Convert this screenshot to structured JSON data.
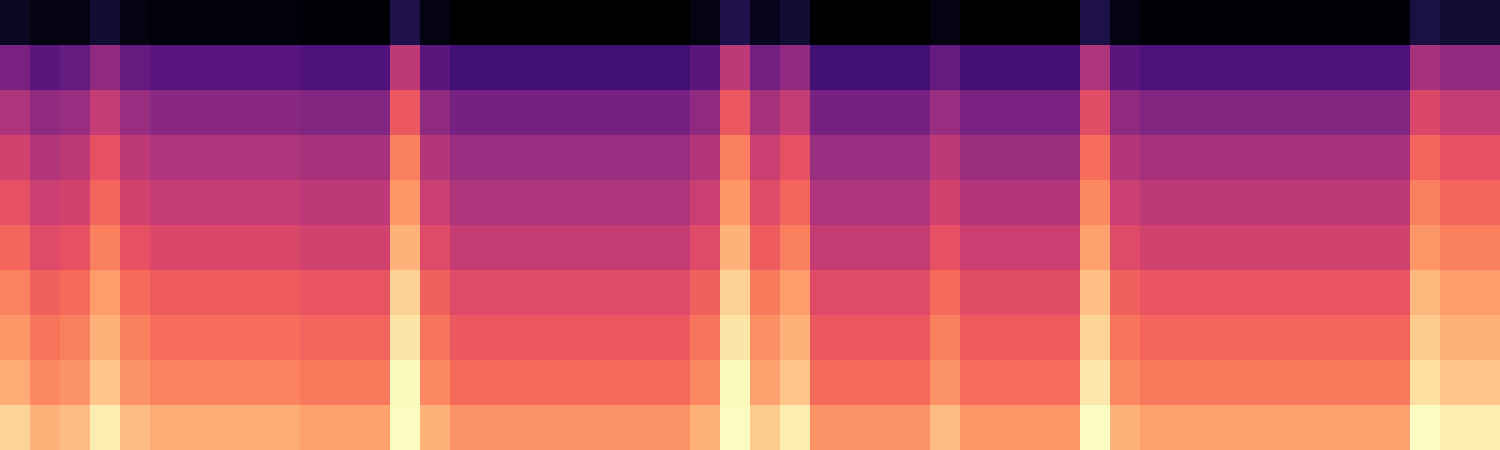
{
  "chart_data": {
    "type": "heatmap",
    "color": "magma",
    "tick_labels": false,
    "cells": [
      [
        0.13,
        0.1,
        0.1,
        0.16,
        0.1,
        0.09,
        0.09,
        0.09,
        0.09,
        0.09,
        0.08,
        0.08,
        0.08,
        0.2,
        0.1,
        0.07,
        0.07,
        0.07,
        0.07,
        0.07,
        0.07,
        0.07,
        0.07,
        0.1,
        0.2,
        0.12,
        0.16,
        0.07,
        0.07,
        0.07,
        0.07,
        0.1,
        0.07,
        0.07,
        0.07,
        0.07,
        0.19,
        0.1,
        0.08,
        0.08,
        0.08,
        0.08,
        0.08,
        0.08,
        0.08,
        0.08,
        0.08,
        0.18,
        0.16,
        0.16
      ],
      [
        0.4,
        0.33,
        0.35,
        0.45,
        0.35,
        0.32,
        0.32,
        0.32,
        0.32,
        0.32,
        0.3,
        0.3,
        0.3,
        0.55,
        0.33,
        0.27,
        0.27,
        0.27,
        0.27,
        0.27,
        0.27,
        0.27,
        0.27,
        0.33,
        0.55,
        0.38,
        0.45,
        0.27,
        0.27,
        0.27,
        0.27,
        0.35,
        0.28,
        0.28,
        0.28,
        0.28,
        0.52,
        0.33,
        0.3,
        0.3,
        0.3,
        0.3,
        0.3,
        0.3,
        0.3,
        0.3,
        0.3,
        0.5,
        0.45,
        0.45
      ],
      [
        0.52,
        0.45,
        0.47,
        0.57,
        0.47,
        0.44,
        0.44,
        0.44,
        0.44,
        0.44,
        0.42,
        0.42,
        0.42,
        0.67,
        0.45,
        0.39,
        0.39,
        0.39,
        0.39,
        0.39,
        0.39,
        0.39,
        0.39,
        0.45,
        0.67,
        0.5,
        0.57,
        0.39,
        0.39,
        0.39,
        0.39,
        0.47,
        0.4,
        0.4,
        0.4,
        0.4,
        0.64,
        0.45,
        0.42,
        0.42,
        0.42,
        0.42,
        0.42,
        0.42,
        0.42,
        0.42,
        0.42,
        0.62,
        0.57,
        0.57
      ],
      [
        0.6,
        0.53,
        0.55,
        0.65,
        0.55,
        0.52,
        0.52,
        0.52,
        0.52,
        0.52,
        0.5,
        0.5,
        0.5,
        0.75,
        0.53,
        0.47,
        0.47,
        0.47,
        0.47,
        0.47,
        0.47,
        0.47,
        0.47,
        0.53,
        0.75,
        0.58,
        0.65,
        0.47,
        0.47,
        0.47,
        0.47,
        0.55,
        0.48,
        0.48,
        0.48,
        0.48,
        0.72,
        0.53,
        0.5,
        0.5,
        0.5,
        0.5,
        0.5,
        0.5,
        0.5,
        0.5,
        0.5,
        0.7,
        0.65,
        0.65
      ],
      [
        0.65,
        0.58,
        0.6,
        0.7,
        0.6,
        0.57,
        0.57,
        0.57,
        0.57,
        0.57,
        0.55,
        0.55,
        0.55,
        0.8,
        0.58,
        0.52,
        0.52,
        0.52,
        0.52,
        0.52,
        0.52,
        0.52,
        0.52,
        0.58,
        0.8,
        0.63,
        0.7,
        0.52,
        0.52,
        0.52,
        0.52,
        0.6,
        0.53,
        0.53,
        0.53,
        0.53,
        0.77,
        0.58,
        0.55,
        0.55,
        0.55,
        0.55,
        0.55,
        0.55,
        0.55,
        0.55,
        0.55,
        0.75,
        0.7,
        0.7
      ],
      [
        0.7,
        0.63,
        0.65,
        0.75,
        0.65,
        0.62,
        0.62,
        0.62,
        0.62,
        0.62,
        0.6,
        0.6,
        0.6,
        0.85,
        0.63,
        0.57,
        0.57,
        0.57,
        0.57,
        0.57,
        0.57,
        0.57,
        0.57,
        0.63,
        0.85,
        0.68,
        0.75,
        0.57,
        0.57,
        0.57,
        0.57,
        0.65,
        0.58,
        0.58,
        0.58,
        0.58,
        0.82,
        0.63,
        0.6,
        0.6,
        0.6,
        0.6,
        0.6,
        0.6,
        0.6,
        0.6,
        0.6,
        0.8,
        0.75,
        0.75
      ],
      [
        0.76,
        0.69,
        0.71,
        0.81,
        0.71,
        0.68,
        0.68,
        0.68,
        0.68,
        0.68,
        0.66,
        0.66,
        0.66,
        0.91,
        0.69,
        0.63,
        0.63,
        0.63,
        0.63,
        0.63,
        0.63,
        0.63,
        0.63,
        0.69,
        0.91,
        0.74,
        0.81,
        0.63,
        0.63,
        0.63,
        0.63,
        0.71,
        0.64,
        0.64,
        0.64,
        0.64,
        0.88,
        0.69,
        0.66,
        0.66,
        0.66,
        0.66,
        0.66,
        0.66,
        0.66,
        0.66,
        0.66,
        0.86,
        0.81,
        0.81
      ],
      [
        0.8,
        0.73,
        0.75,
        0.85,
        0.75,
        0.72,
        0.72,
        0.72,
        0.72,
        0.72,
        0.7,
        0.7,
        0.7,
        0.95,
        0.73,
        0.67,
        0.67,
        0.67,
        0.67,
        0.67,
        0.67,
        0.67,
        0.67,
        0.73,
        0.95,
        0.78,
        0.85,
        0.67,
        0.67,
        0.67,
        0.67,
        0.75,
        0.68,
        0.68,
        0.68,
        0.68,
        0.92,
        0.73,
        0.7,
        0.7,
        0.7,
        0.7,
        0.7,
        0.7,
        0.7,
        0.7,
        0.7,
        0.9,
        0.85,
        0.85
      ],
      [
        0.84,
        0.77,
        0.79,
        0.89,
        0.79,
        0.76,
        0.76,
        0.76,
        0.76,
        0.76,
        0.74,
        0.74,
        0.74,
        0.99,
        0.77,
        0.71,
        0.71,
        0.71,
        0.71,
        0.71,
        0.71,
        0.71,
        0.71,
        0.77,
        0.99,
        0.82,
        0.89,
        0.71,
        0.71,
        0.71,
        0.71,
        0.79,
        0.72,
        0.72,
        0.72,
        0.72,
        0.96,
        0.77,
        0.74,
        0.74,
        0.74,
        0.74,
        0.74,
        0.74,
        0.74,
        0.74,
        0.74,
        0.94,
        0.89,
        0.89
      ],
      [
        0.92,
        0.85,
        0.87,
        0.97,
        0.87,
        0.84,
        0.84,
        0.84,
        0.84,
        0.84,
        0.82,
        0.82,
        0.82,
        1.0,
        0.85,
        0.79,
        0.79,
        0.79,
        0.79,
        0.79,
        0.79,
        0.79,
        0.79,
        0.85,
        1.0,
        0.9,
        0.97,
        0.79,
        0.79,
        0.79,
        0.79,
        0.87,
        0.8,
        0.8,
        0.8,
        0.8,
        1.0,
        0.85,
        0.82,
        0.82,
        0.82,
        0.82,
        0.82,
        0.82,
        0.82,
        0.82,
        0.82,
        1.0,
        0.97,
        0.97
      ]
    ]
  }
}
